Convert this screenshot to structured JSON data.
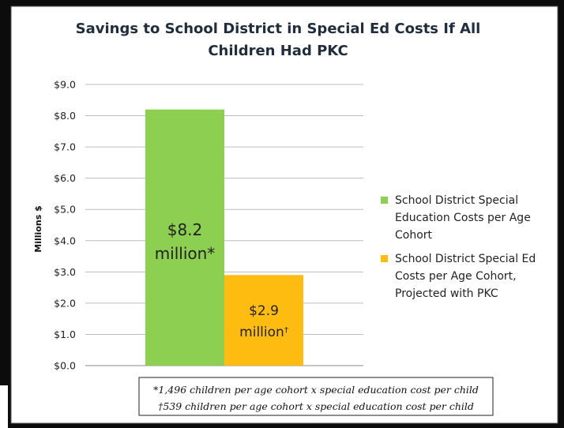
{
  "chart_data": {
    "type": "bar",
    "title_lines": [
      "Savings to School District in Special Ed Costs If All",
      "Children Had PKC"
    ],
    "ylabel": "Millions $",
    "xlabel": "",
    "ylim": [
      0,
      9
    ],
    "y_ticks": [
      "$0.0",
      "$1.0",
      "$2.0",
      "$3.0",
      "$4.0",
      "$5.0",
      "$6.0",
      "$7.0",
      "$8.0",
      "$9.0"
    ],
    "grid": true,
    "legend_position": "right",
    "series": [
      {
        "name_lines": [
          "School District Special",
          "Education Costs per Age",
          "Cohort"
        ],
        "value": 8.2,
        "color": "#8ccf51",
        "label_value": "$8.2",
        "label_unit": "million*"
      },
      {
        "name_lines": [
          "School District Special Ed",
          "Costs per Age Cohort,",
          "Projected with PKC"
        ],
        "value": 2.9,
        "color": "#fdbc0f",
        "label_value": "$2.9",
        "label_unit": "million",
        "label_mark": "†"
      }
    ],
    "footnotes": [
      "*1,496 children per age cohort x special education cost per child",
      "†539 children per age cohort x special education cost per child"
    ]
  }
}
